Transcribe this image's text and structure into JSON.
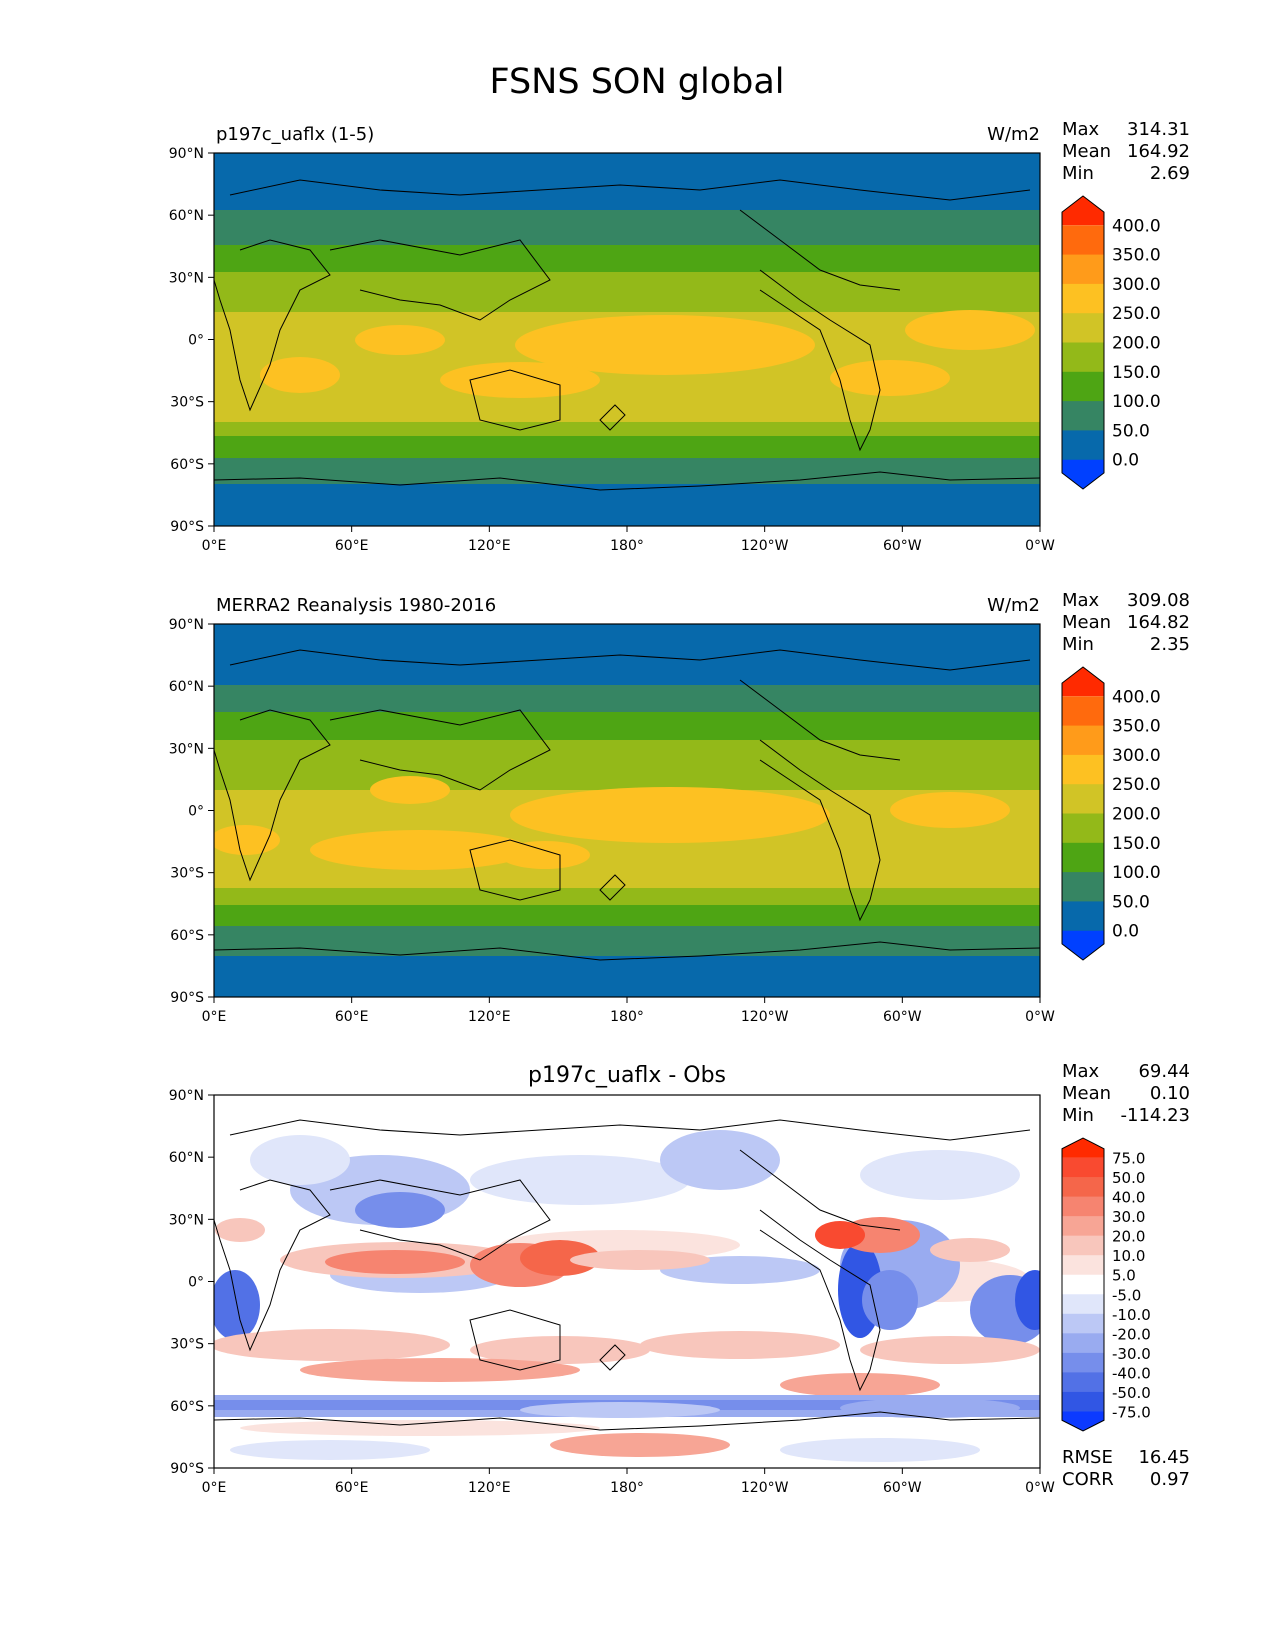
{
  "title": "FSNS SON global",
  "axis": {
    "lat_ticks": [
      "90°N",
      "60°N",
      "30°N",
      "0°",
      "30°S",
      "60°S",
      "90°S"
    ],
    "lon_ticks": [
      "0°E",
      "60°E",
      "120°E",
      "180°",
      "120°W",
      "60°W",
      "0°W"
    ]
  },
  "panels": [
    {
      "title_left": "p197c_uaflx (1-5)",
      "units": "W/m2",
      "stats": {
        "max_label": "Max",
        "max": "314.31",
        "mean_label": "Mean",
        "mean": "164.92",
        "min_label": "Min",
        "min": "2.69"
      },
      "colorbar": {
        "labels": [
          "400.0",
          "350.0",
          "300.0",
          "250.0",
          "200.0",
          "150.0",
          "100.0",
          "50.0",
          "0.0"
        ],
        "colors_top_to_bottom": [
          "#ff2a00",
          "#ff6a0d",
          "#ff9b1a",
          "#fdc122",
          "#d1c426",
          "#93b919",
          "#4ea514",
          "#368563",
          "#0769ab",
          "#0040ff"
        ]
      }
    },
    {
      "title_left": "MERRA2 Reanalysis 1980-2016",
      "units": "W/m2",
      "stats": {
        "max_label": "Max",
        "max": "309.08",
        "mean_label": "Mean",
        "mean": "164.82",
        "min_label": "Min",
        "min": "2.35"
      },
      "colorbar": {
        "labels": [
          "400.0",
          "350.0",
          "300.0",
          "250.0",
          "200.0",
          "150.0",
          "100.0",
          "50.0",
          "0.0"
        ],
        "colors_top_to_bottom": [
          "#ff2a00",
          "#ff6a0d",
          "#ff9b1a",
          "#fdc122",
          "#d1c426",
          "#93b919",
          "#4ea514",
          "#368563",
          "#0769ab",
          "#0040ff"
        ]
      }
    },
    {
      "title_center": "p197c_uaflx - Obs",
      "stats": {
        "max_label": "Max",
        "max": "69.44",
        "mean_label": "Mean",
        "mean": "0.10",
        "min_label": "Min",
        "min": "-114.23"
      },
      "colorbar": {
        "labels": [
          "75.0",
          "50.0",
          "40.0",
          "30.0",
          "20.0",
          "10.0",
          "5.0",
          "-5.0",
          "-10.0",
          "-20.0",
          "-30.0",
          "-40.0",
          "-50.0",
          "-75.0"
        ],
        "colors_top_to_bottom": [
          "#ff2a00",
          "#f94a30",
          "#f5664a",
          "#f68470",
          "#f7a595",
          "#f8c6bc",
          "#fbe3de",
          "#ffffff",
          "#e0e6fa",
          "#bcc8f5",
          "#99abf0",
          "#768eeb",
          "#5271e6",
          "#3156e4",
          "#0c3aff"
        ]
      },
      "rmse_label": "RMSE",
      "rmse": "16.45",
      "corr_label": "CORR",
      "corr": "0.97"
    }
  ]
}
